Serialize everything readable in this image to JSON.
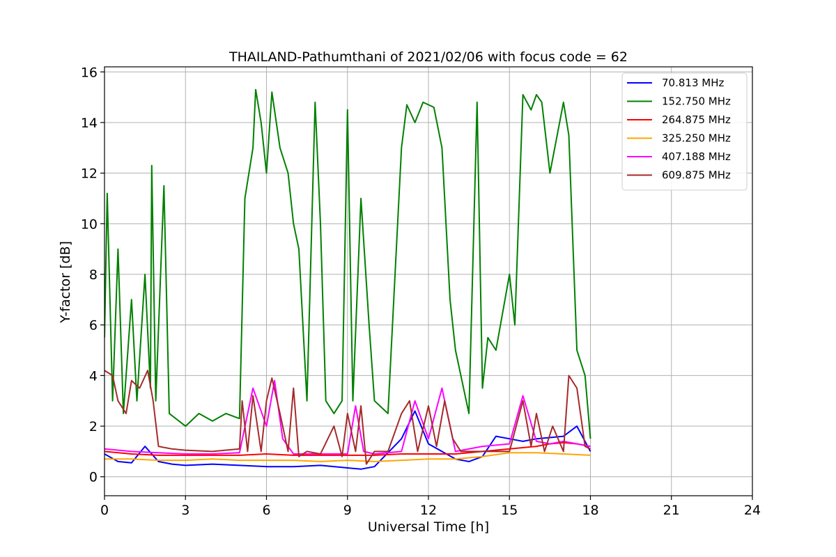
{
  "chart_data": {
    "type": "line",
    "title": "THAILAND-Pathumthani of 2021/02/06 with focus code = 62",
    "xlabel": "Universal Time [h]",
    "ylabel": "Y-factor [dB]",
    "xlim": [
      0,
      24
    ],
    "ylim": [
      -0.75,
      16.2
    ],
    "xticks": [
      0,
      3,
      6,
      9,
      12,
      15,
      18,
      21,
      24
    ],
    "yticks": [
      0,
      2,
      4,
      6,
      8,
      10,
      12,
      14,
      16
    ],
    "grid": true,
    "legend_position": "top-right",
    "series": [
      {
        "name": " 70.813 MHz",
        "color": "#0000ff",
        "points": [
          [
            0,
            0.9
          ],
          [
            0.5,
            0.6
          ],
          [
            1,
            0.55
          ],
          [
            1.5,
            1.2
          ],
          [
            2,
            0.6
          ],
          [
            2.5,
            0.5
          ],
          [
            3,
            0.45
          ],
          [
            4,
            0.5
          ],
          [
            5,
            0.45
          ],
          [
            6,
            0.4
          ],
          [
            7,
            0.4
          ],
          [
            8,
            0.45
          ],
          [
            9,
            0.35
          ],
          [
            9.5,
            0.3
          ],
          [
            10,
            0.4
          ],
          [
            11,
            1.5
          ],
          [
            11.5,
            2.6
          ],
          [
            12,
            1.3
          ],
          [
            13,
            0.7
          ],
          [
            13.5,
            0.6
          ],
          [
            14,
            0.8
          ],
          [
            14.5,
            1.6
          ],
          [
            15,
            1.5
          ],
          [
            15.5,
            1.4
          ],
          [
            16,
            1.5
          ],
          [
            17,
            1.6
          ],
          [
            17.5,
            2.0
          ],
          [
            18,
            1.0
          ]
        ]
      },
      {
        "name": "152.750 MHz",
        "color": "#008000",
        "points": [
          [
            0,
            5.5
          ],
          [
            0.1,
            11.2
          ],
          [
            0.3,
            3.0
          ],
          [
            0.5,
            9.0
          ],
          [
            0.7,
            2.5
          ],
          [
            1,
            7.0
          ],
          [
            1.2,
            3.0
          ],
          [
            1.5,
            8.0
          ],
          [
            1.7,
            3.5
          ],
          [
            1.75,
            12.3
          ],
          [
            1.9,
            3.0
          ],
          [
            2.2,
            11.5
          ],
          [
            2.4,
            2.5
          ],
          [
            3,
            2.0
          ],
          [
            3.5,
            2.5
          ],
          [
            4,
            2.2
          ],
          [
            4.5,
            2.5
          ],
          [
            5,
            2.3
          ],
          [
            5.2,
            11.0
          ],
          [
            5.5,
            13.0
          ],
          [
            5.6,
            15.3
          ],
          [
            5.8,
            14.0
          ],
          [
            6,
            12.0
          ],
          [
            6.2,
            15.2
          ],
          [
            6.5,
            13.0
          ],
          [
            6.8,
            12.0
          ],
          [
            7,
            10.0
          ],
          [
            7.2,
            9.0
          ],
          [
            7.5,
            3.0
          ],
          [
            7.8,
            14.8
          ],
          [
            8,
            10.0
          ],
          [
            8.2,
            3.0
          ],
          [
            8.5,
            2.5
          ],
          [
            8.8,
            3.0
          ],
          [
            9,
            14.5
          ],
          [
            9.2,
            3.0
          ],
          [
            9.5,
            11.0
          ],
          [
            9.8,
            6.0
          ],
          [
            10,
            3.0
          ],
          [
            10.5,
            2.5
          ],
          [
            11,
            13.0
          ],
          [
            11.2,
            14.7
          ],
          [
            11.5,
            14.0
          ],
          [
            11.8,
            14.8
          ],
          [
            12,
            14.7
          ],
          [
            12.2,
            14.6
          ],
          [
            12.5,
            13.0
          ],
          [
            12.8,
            7.0
          ],
          [
            13,
            5.0
          ],
          [
            13.5,
            2.5
          ],
          [
            13.8,
            14.8
          ],
          [
            14,
            3.5
          ],
          [
            14.2,
            5.5
          ],
          [
            14.5,
            5.0
          ],
          [
            15,
            8.0
          ],
          [
            15.2,
            6.0
          ],
          [
            15.5,
            15.1
          ],
          [
            15.8,
            14.5
          ],
          [
            16,
            15.1
          ],
          [
            16.2,
            14.8
          ],
          [
            16.5,
            12.0
          ],
          [
            17,
            14.8
          ],
          [
            17.2,
            13.5
          ],
          [
            17.5,
            5.0
          ],
          [
            17.8,
            4.0
          ],
          [
            18,
            1.5
          ]
        ]
      },
      {
        "name": "264.875 MHz",
        "color": "#ff0000",
        "points": [
          [
            0,
            1.0
          ],
          [
            1,
            0.9
          ],
          [
            2,
            0.85
          ],
          [
            3,
            0.85
          ],
          [
            4,
            0.85
          ],
          [
            5,
            0.85
          ],
          [
            6,
            0.9
          ],
          [
            7,
            0.85
          ],
          [
            8,
            0.85
          ],
          [
            9,
            0.85
          ],
          [
            10,
            0.85
          ],
          [
            11,
            0.9
          ],
          [
            12,
            0.9
          ],
          [
            13,
            0.9
          ],
          [
            14,
            1.0
          ],
          [
            15,
            1.1
          ],
          [
            16,
            1.2
          ],
          [
            16.5,
            1.3
          ],
          [
            17,
            1.35
          ],
          [
            17.5,
            1.3
          ],
          [
            18,
            1.2
          ]
        ]
      },
      {
        "name": "325.250 MHz",
        "color": "#ffa500",
        "points": [
          [
            0,
            0.7
          ],
          [
            1,
            0.7
          ],
          [
            2,
            0.65
          ],
          [
            3,
            0.65
          ],
          [
            4,
            0.7
          ],
          [
            5,
            0.65
          ],
          [
            6,
            0.65
          ],
          [
            7,
            0.65
          ],
          [
            8,
            0.6
          ],
          [
            9,
            0.65
          ],
          [
            10,
            0.6
          ],
          [
            11,
            0.65
          ],
          [
            12,
            0.7
          ],
          [
            13,
            0.7
          ],
          [
            14,
            0.8
          ],
          [
            15,
            0.95
          ],
          [
            16,
            0.95
          ],
          [
            17,
            0.9
          ],
          [
            18,
            0.85
          ]
        ]
      },
      {
        "name": "407.188 MHz",
        "color": "#ff00ff",
        "points": [
          [
            0,
            1.1
          ],
          [
            1,
            1.0
          ],
          [
            2,
            0.95
          ],
          [
            3,
            0.9
          ],
          [
            4,
            0.9
          ],
          [
            5,
            0.95
          ],
          [
            5.5,
            3.5
          ],
          [
            6,
            2.0
          ],
          [
            6.3,
            3.8
          ],
          [
            6.6,
            1.5
          ],
          [
            7,
            0.9
          ],
          [
            8,
            0.9
          ],
          [
            9,
            0.9
          ],
          [
            9.3,
            2.8
          ],
          [
            9.6,
            1.0
          ],
          [
            10,
            0.9
          ],
          [
            11,
            1.0
          ],
          [
            11.5,
            3.0
          ],
          [
            12,
            1.5
          ],
          [
            12.5,
            3.5
          ],
          [
            13,
            1.0
          ],
          [
            14,
            1.2
          ],
          [
            15,
            1.3
          ],
          [
            15.5,
            3.2
          ],
          [
            16,
            1.4
          ],
          [
            16.5,
            1.3
          ],
          [
            17,
            1.4
          ],
          [
            17.5,
            1.3
          ],
          [
            18,
            1.2
          ]
        ]
      },
      {
        "name": "609.875 MHz",
        "color": "#a52a2a",
        "points": [
          [
            0,
            4.2
          ],
          [
            0.3,
            4.0
          ],
          [
            0.5,
            3.0
          ],
          [
            0.8,
            2.5
          ],
          [
            1,
            3.8
          ],
          [
            1.3,
            3.5
          ],
          [
            1.6,
            4.2
          ],
          [
            1.8,
            3.0
          ],
          [
            2,
            1.2
          ],
          [
            2.5,
            1.1
          ],
          [
            3,
            1.05
          ],
          [
            4,
            1.0
          ],
          [
            5,
            1.1
          ],
          [
            5.1,
            3.0
          ],
          [
            5.3,
            1.0
          ],
          [
            5.5,
            3.2
          ],
          [
            5.8,
            1.0
          ],
          [
            6,
            3.0
          ],
          [
            6.2,
            3.9
          ],
          [
            6.5,
            2.5
          ],
          [
            6.8,
            1.0
          ],
          [
            7,
            3.5
          ],
          [
            7.2,
            0.8
          ],
          [
            7.5,
            1.0
          ],
          [
            8,
            0.9
          ],
          [
            8.5,
            2.0
          ],
          [
            8.8,
            0.8
          ],
          [
            9,
            2.5
          ],
          [
            9.3,
            1.0
          ],
          [
            9.5,
            2.8
          ],
          [
            9.7,
            0.5
          ],
          [
            10,
            1.0
          ],
          [
            10.5,
            1.0
          ],
          [
            11,
            2.5
          ],
          [
            11.3,
            3.0
          ],
          [
            11.6,
            1.0
          ],
          [
            12,
            2.8
          ],
          [
            12.3,
            1.2
          ],
          [
            12.6,
            3.0
          ],
          [
            12.9,
            1.5
          ],
          [
            13.2,
            1.0
          ],
          [
            14,
            1.0
          ],
          [
            14.5,
            1.0
          ],
          [
            15,
            1.0
          ],
          [
            15.5,
            3.0
          ],
          [
            15.8,
            1.2
          ],
          [
            16,
            2.5
          ],
          [
            16.3,
            1.0
          ],
          [
            16.6,
            2.0
          ],
          [
            17,
            1.0
          ],
          [
            17.2,
            4.0
          ],
          [
            17.5,
            3.5
          ],
          [
            17.8,
            1.2
          ],
          [
            18,
            1.1
          ]
        ]
      }
    ]
  }
}
